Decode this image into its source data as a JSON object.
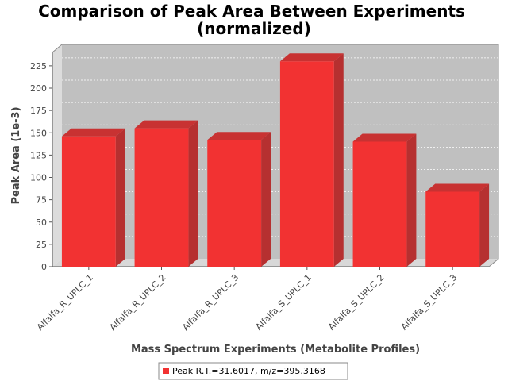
{
  "chart_data": {
    "type": "bar",
    "title_lines": [
      "Comparison of Peak Area Between Experiments",
      "(normalized)"
    ],
    "xlabel": "Mass Spectrum Experiments (Metabolite Profiles)",
    "ylabel": "Peak Area (1e-3)",
    "categories": [
      "Alfalfa_R_UPLC_1",
      "Alfalfa_R_UPLC_2",
      "Alfalfa_R_UPLC_3",
      "Alfalfa_S_UPLC_1",
      "Alfalfa_S_UPLC_2",
      "Alfalfa_S_UPLC_3"
    ],
    "series": [
      {
        "name": "Peak R.T.=31.6017, m/z=395.3168",
        "color": "#f23232",
        "values": [
          146,
          155,
          142,
          230,
          140,
          84
        ]
      }
    ],
    "ylim": [
      0,
      240
    ],
    "yticks": [
      0,
      25,
      50,
      75,
      100,
      125,
      150,
      175,
      200,
      225
    ],
    "grid": true,
    "legend_position": "bottom-center",
    "plot_background": "#c0c0c0"
  }
}
